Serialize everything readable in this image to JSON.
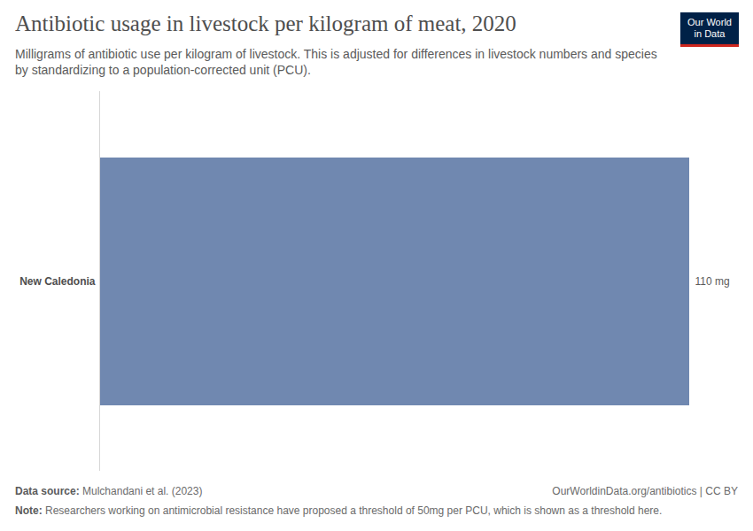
{
  "chart_data": {
    "type": "bar",
    "orientation": "horizontal",
    "title": "Antibiotic usage in livestock per kilogram of meat, 2020",
    "subtitle": "Milligrams of antibiotic use per kilogram of livestock. This is adjusted for differences in livestock numbers and species by standardizing to a population-corrected unit (PCU).",
    "categories": [
      "New Caledonia"
    ],
    "values": [
      110
    ],
    "value_labels": [
      "110 mg"
    ],
    "data_labels": true,
    "color": "#7088b0",
    "xlim": [
      0,
      110
    ],
    "tick_labels": "y",
    "grid": false,
    "source_label": "Data source:",
    "source": "Mulchandani et al. (2023)",
    "license": "OurWorldinData.org/antibiotics | CC BY",
    "note_label": "Note:",
    "note": "Researchers working on antimicrobial resistance have proposed a threshold of 50mg per PCU, which is shown as a threshold here.",
    "logo": [
      "Our World",
      "in Data"
    ]
  }
}
